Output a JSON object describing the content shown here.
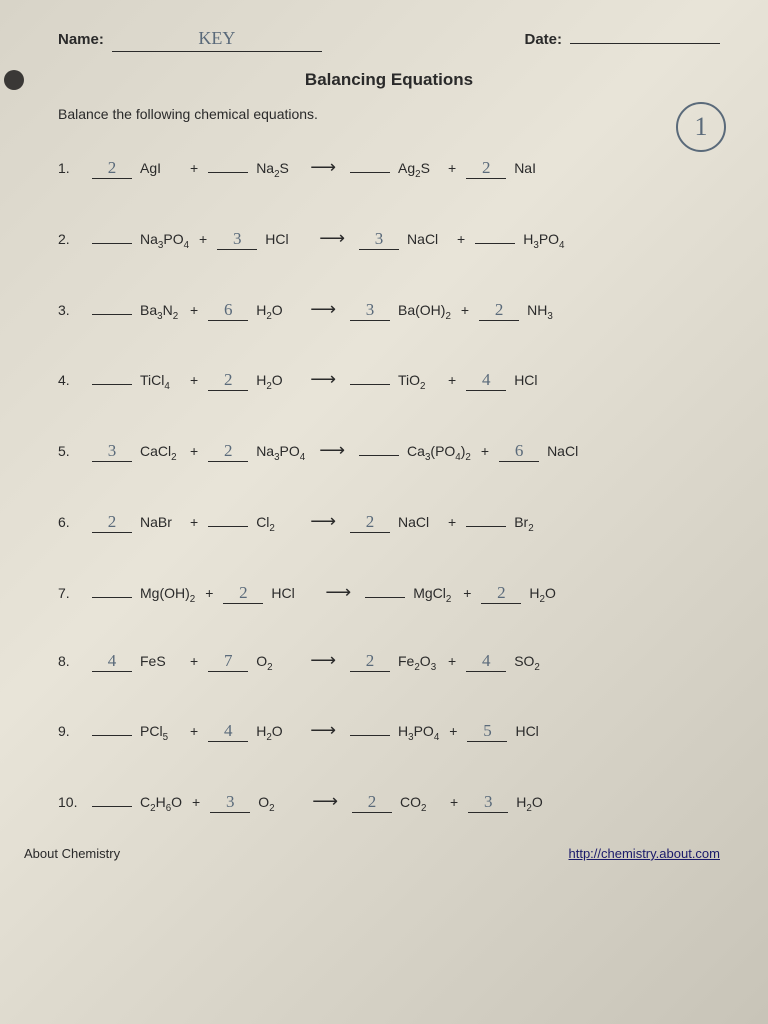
{
  "header": {
    "name_label": "Name:",
    "name_value": "KEY",
    "date_label": "Date:",
    "date_value": ""
  },
  "title": "Balancing Equations",
  "instructions": "Balance the following chemical equations.",
  "circle_number": "1",
  "equations": [
    {
      "n": "1.",
      "c1": "2",
      "r1": "AgI",
      "c2": "",
      "r2": "Na₂S",
      "c3": "",
      "p1": "Ag₂S",
      "c4": "2",
      "p2": "NaI"
    },
    {
      "n": "2.",
      "c1": "",
      "r1": "Na₃PO₄",
      "c2": "3",
      "r2": "HCl",
      "c3": "3",
      "p1": "NaCl",
      "c4": "",
      "p2": "H₃PO₄"
    },
    {
      "n": "3.",
      "c1": "",
      "r1": "Ba₃N₂",
      "c2": "6",
      "r2": "H₂O",
      "c3": "3",
      "p1": "Ba(OH)₂",
      "c4": "2",
      "p2": "NH₃"
    },
    {
      "n": "4.",
      "c1": "",
      "r1": "TiCl₄",
      "c2": "2",
      "r2": "H₂O",
      "c3": "",
      "p1": "TiO₂",
      "c4": "4",
      "p2": "HCl"
    },
    {
      "n": "5.",
      "c1": "3",
      "r1": "CaCl₂",
      "c2": "2",
      "r2": "Na₃PO₄",
      "c3": "",
      "p1": "Ca₃(PO₄)₂",
      "c4": "6",
      "p2": "NaCl"
    },
    {
      "n": "6.",
      "c1": "2",
      "r1": "NaBr",
      "c2": "",
      "r2": "Cl₂",
      "c3": "2",
      "p1": "NaCl",
      "c4": "",
      "p2": "Br₂"
    },
    {
      "n": "7.",
      "c1": "",
      "r1": "Mg(OH)₂",
      "c2": "2",
      "r2": "HCl",
      "c3": "",
      "p1": "MgCl₂",
      "c4": "2",
      "p2": "H₂O"
    },
    {
      "n": "8.",
      "c1": "4",
      "r1": "FeS",
      "c2": "7",
      "r2": "O₂",
      "c3": "2",
      "p1": "Fe₂O₃",
      "c4": "4",
      "p2": "SO₂"
    },
    {
      "n": "9.",
      "c1": "",
      "r1": "PCl₅",
      "c2": "4",
      "r2": "H₂O",
      "c3": "",
      "p1": "H₃PO₄",
      "c4": "5",
      "p2": "HCl"
    },
    {
      "n": "10.",
      "c1": "",
      "r1": "C₂H₆O",
      "c2": "3",
      "r2": "O₂",
      "c3": "2",
      "p1": "CO₂",
      "c4": "3",
      "p2": "H₂O"
    }
  ],
  "footer": {
    "left": "About Chemistry",
    "right": "http://chemistry.about.com"
  },
  "style": {
    "handwriting_color": "#5a6a7a",
    "text_color": "#2a2a2a",
    "paper_bg": "#e0dcd0"
  }
}
